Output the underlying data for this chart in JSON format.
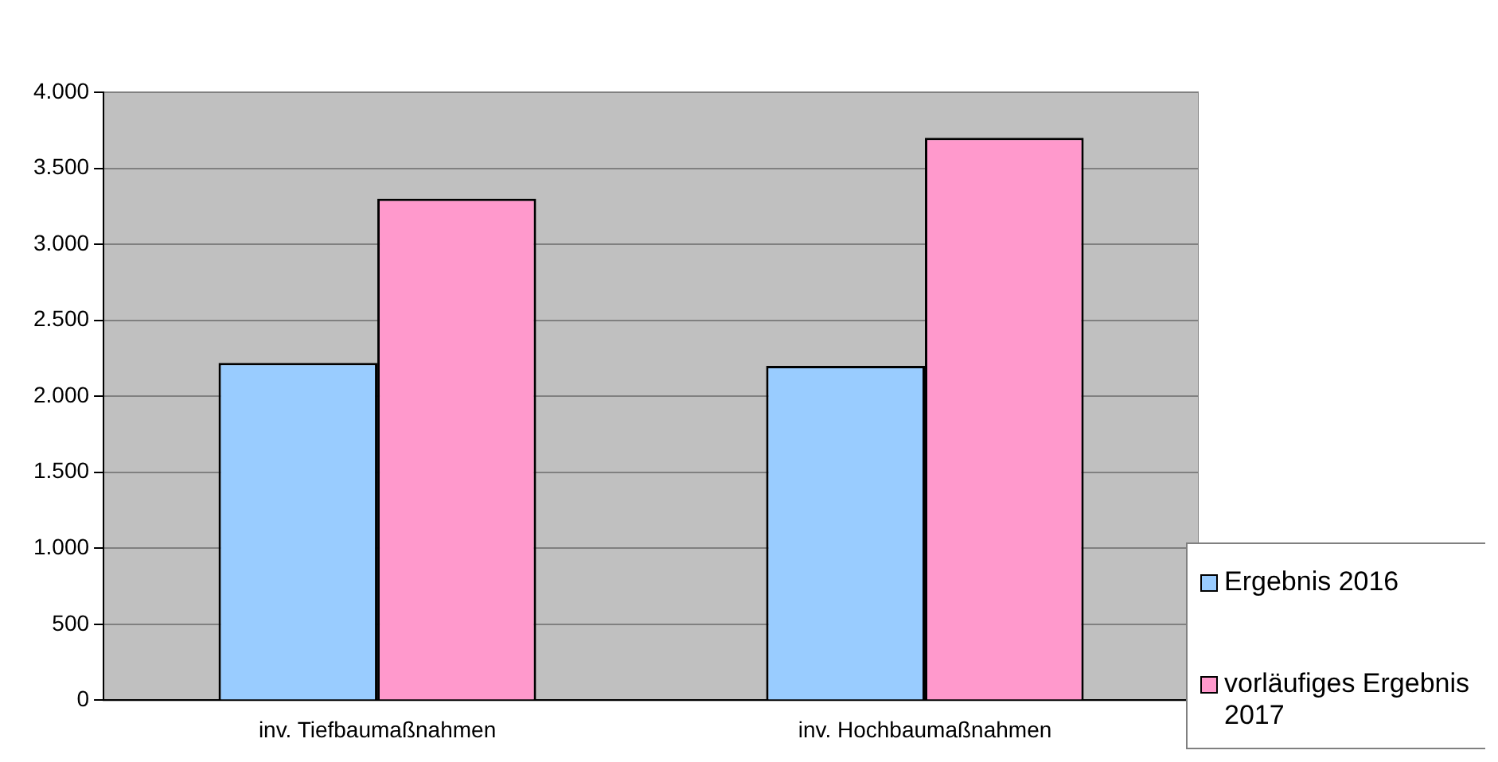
{
  "chart_data": {
    "type": "bar",
    "categories": [
      "inv. Tiefbaumaßnahmen",
      "inv. Hochbaumaßnahmen"
    ],
    "series": [
      {
        "name": "Ergebnis 2016",
        "color": "#99ccff",
        "values": [
          2220,
          2200
        ]
      },
      {
        "name": "vorläufiges Ergebnis 2017",
        "color": "#ff99cc",
        "values": [
          3300,
          3700
        ]
      }
    ],
    "ylim": [
      0,
      4000
    ],
    "yticks": [
      {
        "value": 0,
        "label": "0"
      },
      {
        "value": 500,
        "label": "500"
      },
      {
        "value": 1000,
        "label": "1.000"
      },
      {
        "value": 1500,
        "label": "1.500"
      },
      {
        "value": 2000,
        "label": "2.000"
      },
      {
        "value": 2500,
        "label": "2.500"
      },
      {
        "value": 3000,
        "label": "3.000"
      },
      {
        "value": 3500,
        "label": "3.500"
      },
      {
        "value": 4000,
        "label": "4.000"
      }
    ],
    "grid": "y",
    "legend": "right"
  }
}
